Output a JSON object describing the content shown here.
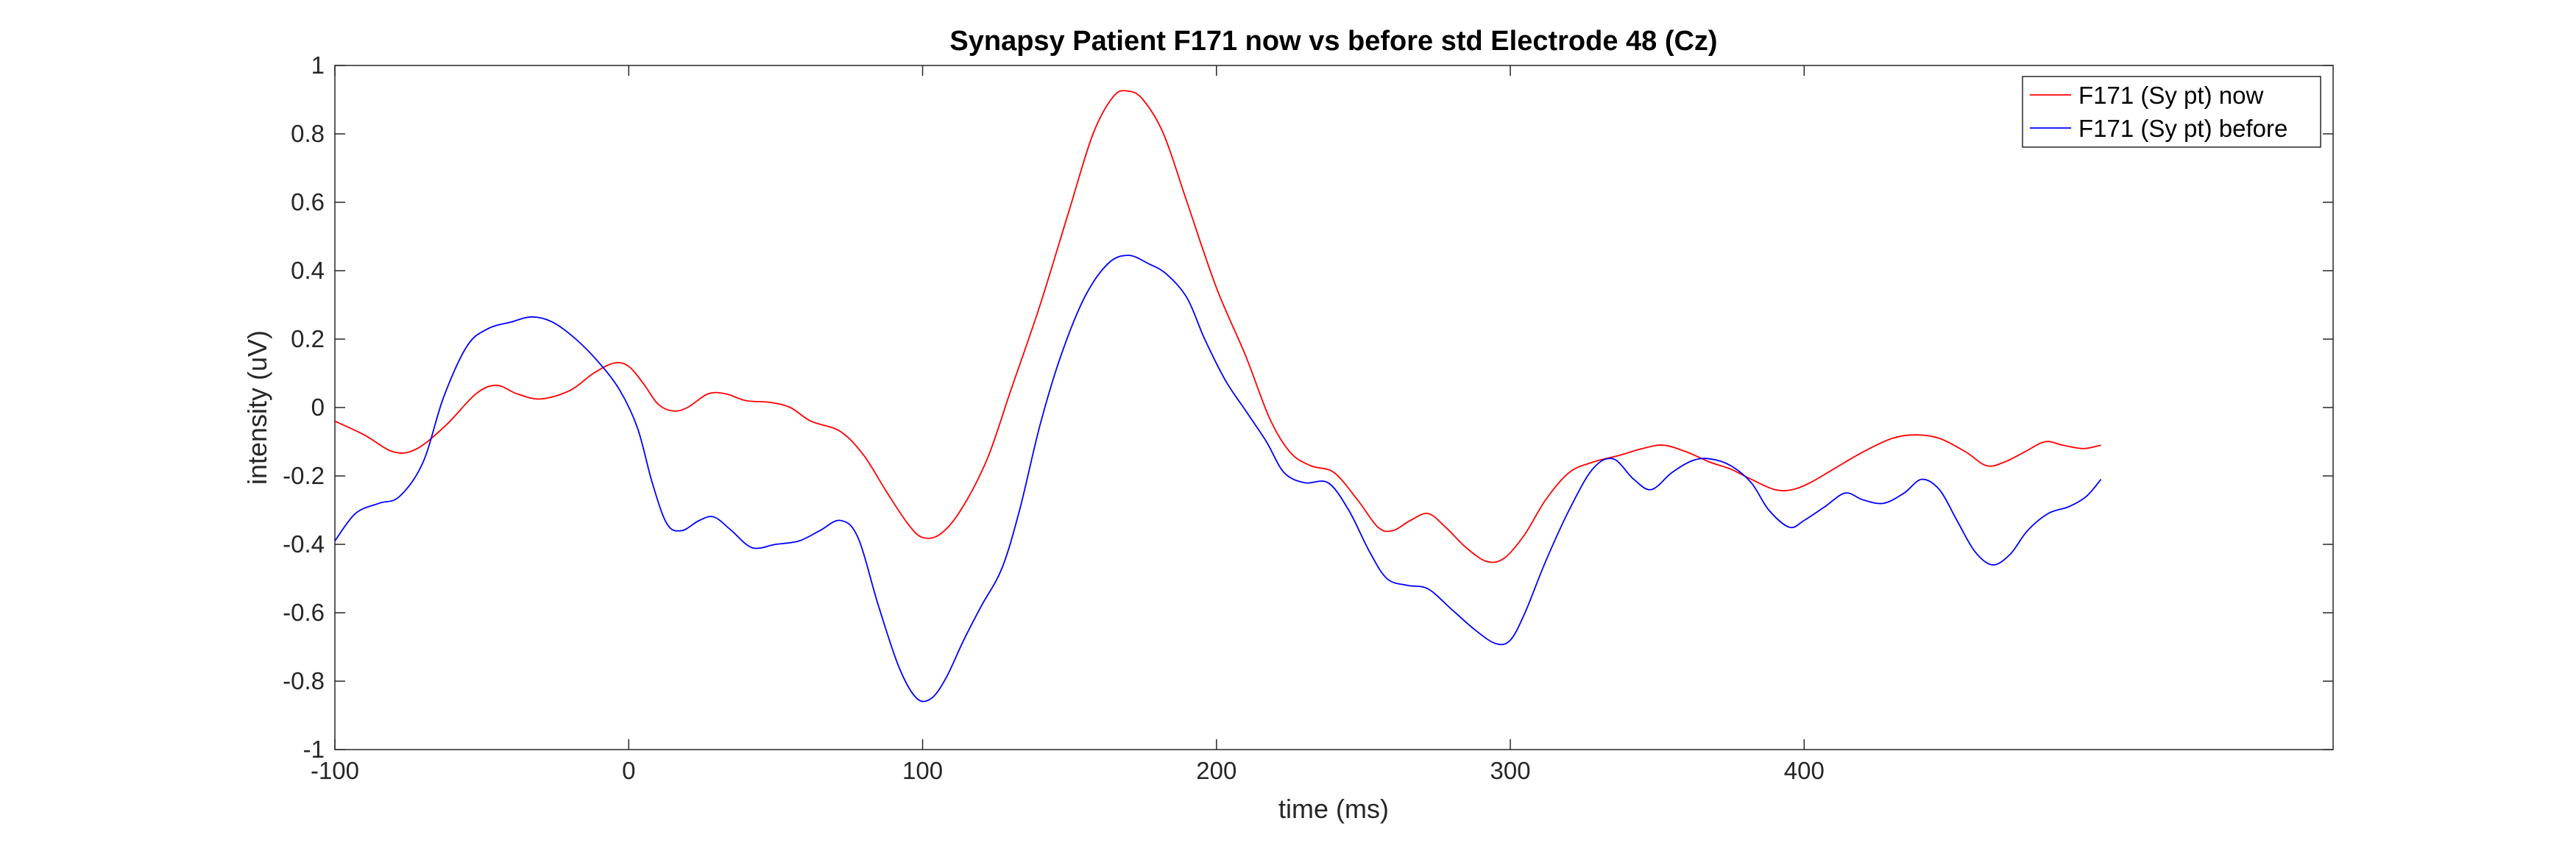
{
  "chart_data": {
    "type": "line",
    "title": "Synapsy Patient F171 now vs before std Electrode 48 (Cz)",
    "xlabel": "time (ms)",
    "ylabel": "intensity (uV)",
    "xlim": [
      -100,
      580
    ],
    "ylim": [
      -1,
      1
    ],
    "xticks": [
      -100,
      0,
      100,
      200,
      300,
      400
    ],
    "xtick_labels": [
      "-100",
      "0",
      "100",
      "200",
      "300",
      "400"
    ],
    "yticks": [
      1,
      0.8,
      0.6,
      0.4,
      0.2,
      0,
      -0.2,
      -0.4,
      -0.6,
      -0.8,
      -1
    ],
    "ytick_labels": [
      "1",
      "0.8",
      "0.6",
      "0.4",
      "0.2",
      "0",
      "-0.2",
      "-0.4",
      "-0.6",
      "-0.8",
      "-1"
    ],
    "grid": false,
    "legend_position": "top-right",
    "series": [
      {
        "name": "F171 (Sy pt) now",
        "color": "#ff0000",
        "points": [
          [
            -100,
            -0.04
          ],
          [
            -90,
            -0.08
          ],
          [
            -80,
            -0.13
          ],
          [
            -72,
            -0.12
          ],
          [
            -62,
            -0.05
          ],
          [
            -52,
            0.04
          ],
          [
            -45,
            0.065
          ],
          [
            -38,
            0.04
          ],
          [
            -30,
            0.025
          ],
          [
            -20,
            0.05
          ],
          [
            -12,
            0.1
          ],
          [
            -5,
            0.13
          ],
          [
            0,
            0.12
          ],
          [
            5,
            0.07
          ],
          [
            10,
            0.01
          ],
          [
            15,
            -0.01
          ],
          [
            20,
            0.0
          ],
          [
            27,
            0.04
          ],
          [
            33,
            0.04
          ],
          [
            40,
            0.02
          ],
          [
            48,
            0.015
          ],
          [
            55,
            0.0
          ],
          [
            62,
            -0.04
          ],
          [
            72,
            -0.07
          ],
          [
            80,
            -0.14
          ],
          [
            88,
            -0.25
          ],
          [
            95,
            -0.34
          ],
          [
            100,
            -0.38
          ],
          [
            106,
            -0.37
          ],
          [
            113,
            -0.3
          ],
          [
            122,
            -0.15
          ],
          [
            130,
            0.05
          ],
          [
            140,
            0.3
          ],
          [
            150,
            0.58
          ],
          [
            158,
            0.8
          ],
          [
            165,
            0.91
          ],
          [
            170,
            0.925
          ],
          [
            175,
            0.9
          ],
          [
            182,
            0.8
          ],
          [
            190,
            0.6
          ],
          [
            200,
            0.35
          ],
          [
            210,
            0.15
          ],
          [
            218,
            -0.03
          ],
          [
            225,
            -0.13
          ],
          [
            232,
            -0.17
          ],
          [
            240,
            -0.19
          ],
          [
            248,
            -0.27
          ],
          [
            255,
            -0.35
          ],
          [
            260,
            -0.36
          ],
          [
            266,
            -0.33
          ],
          [
            272,
            -0.31
          ],
          [
            278,
            -0.35
          ],
          [
            285,
            -0.41
          ],
          [
            292,
            -0.45
          ],
          [
            298,
            -0.44
          ],
          [
            305,
            -0.37
          ],
          [
            312,
            -0.27
          ],
          [
            320,
            -0.19
          ],
          [
            328,
            -0.16
          ],
          [
            337,
            -0.14
          ],
          [
            345,
            -0.12
          ],
          [
            352,
            -0.11
          ],
          [
            360,
            -0.13
          ],
          [
            368,
            -0.16
          ],
          [
            375,
            -0.18
          ],
          [
            382,
            -0.21
          ],
          [
            390,
            -0.24
          ],
          [
            396,
            -0.24
          ],
          [
            402,
            -0.22
          ],
          [
            410,
            -0.18
          ],
          [
            420,
            -0.13
          ],
          [
            430,
            -0.09
          ],
          [
            438,
            -0.08
          ],
          [
            446,
            -0.09
          ],
          [
            455,
            -0.13
          ],
          [
            462,
            -0.17
          ],
          [
            468,
            -0.16
          ],
          [
            475,
            -0.13
          ],
          [
            482,
            -0.1
          ],
          [
            488,
            -0.11
          ],
          [
            495,
            -0.12
          ],
          [
            501,
            -0.11
          ]
        ]
      },
      {
        "name": "F171 (Sy pt) before",
        "color": "#0000ff",
        "points": [
          [
            -100,
            -0.39
          ],
          [
            -93,
            -0.31
          ],
          [
            -85,
            -0.28
          ],
          [
            -78,
            -0.26
          ],
          [
            -70,
            -0.16
          ],
          [
            -63,
            0.03
          ],
          [
            -55,
            0.18
          ],
          [
            -48,
            0.23
          ],
          [
            -40,
            0.25
          ],
          [
            -33,
            0.265
          ],
          [
            -26,
            0.25
          ],
          [
            -18,
            0.2
          ],
          [
            -10,
            0.13
          ],
          [
            -3,
            0.05
          ],
          [
            3,
            -0.06
          ],
          [
            8,
            -0.22
          ],
          [
            13,
            -0.34
          ],
          [
            18,
            -0.36
          ],
          [
            24,
            -0.33
          ],
          [
            29,
            -0.32
          ],
          [
            35,
            -0.36
          ],
          [
            42,
            -0.41
          ],
          [
            50,
            -0.4
          ],
          [
            58,
            -0.39
          ],
          [
            65,
            -0.36
          ],
          [
            72,
            -0.33
          ],
          [
            78,
            -0.38
          ],
          [
            85,
            -0.58
          ],
          [
            92,
            -0.76
          ],
          [
            98,
            -0.85
          ],
          [
            103,
            -0.85
          ],
          [
            108,
            -0.79
          ],
          [
            114,
            -0.68
          ],
          [
            120,
            -0.58
          ],
          [
            127,
            -0.47
          ],
          [
            133,
            -0.3
          ],
          [
            140,
            -0.05
          ],
          [
            147,
            0.15
          ],
          [
            155,
            0.32
          ],
          [
            163,
            0.42
          ],
          [
            170,
            0.445
          ],
          [
            177,
            0.42
          ],
          [
            183,
            0.39
          ],
          [
            190,
            0.32
          ],
          [
            196,
            0.2
          ],
          [
            203,
            0.08
          ],
          [
            210,
            -0.01
          ],
          [
            217,
            -0.1
          ],
          [
            223,
            -0.19
          ],
          [
            230,
            -0.22
          ],
          [
            238,
            -0.22
          ],
          [
            245,
            -0.3
          ],
          [
            252,
            -0.42
          ],
          [
            258,
            -0.5
          ],
          [
            265,
            -0.52
          ],
          [
            272,
            -0.53
          ],
          [
            280,
            -0.59
          ],
          [
            288,
            -0.65
          ],
          [
            295,
            -0.69
          ],
          [
            300,
            -0.68
          ],
          [
            305,
            -0.6
          ],
          [
            312,
            -0.45
          ],
          [
            320,
            -0.3
          ],
          [
            328,
            -0.18
          ],
          [
            335,
            -0.15
          ],
          [
            342,
            -0.21
          ],
          [
            348,
            -0.24
          ],
          [
            355,
            -0.19
          ],
          [
            362,
            -0.155
          ],
          [
            368,
            -0.15
          ],
          [
            375,
            -0.17
          ],
          [
            382,
            -0.22
          ],
          [
            388,
            -0.3
          ],
          [
            395,
            -0.35
          ],
          [
            400,
            -0.33
          ],
          [
            407,
            -0.29
          ],
          [
            414,
            -0.25
          ],
          [
            420,
            -0.27
          ],
          [
            427,
            -0.28
          ],
          [
            434,
            -0.25
          ],
          [
            440,
            -0.21
          ],
          [
            446,
            -0.24
          ],
          [
            452,
            -0.33
          ],
          [
            458,
            -0.42
          ],
          [
            464,
            -0.46
          ],
          [
            470,
            -0.43
          ],
          [
            476,
            -0.36
          ],
          [
            483,
            -0.31
          ],
          [
            490,
            -0.29
          ],
          [
            496,
            -0.26
          ],
          [
            501,
            -0.21
          ]
        ]
      }
    ]
  }
}
